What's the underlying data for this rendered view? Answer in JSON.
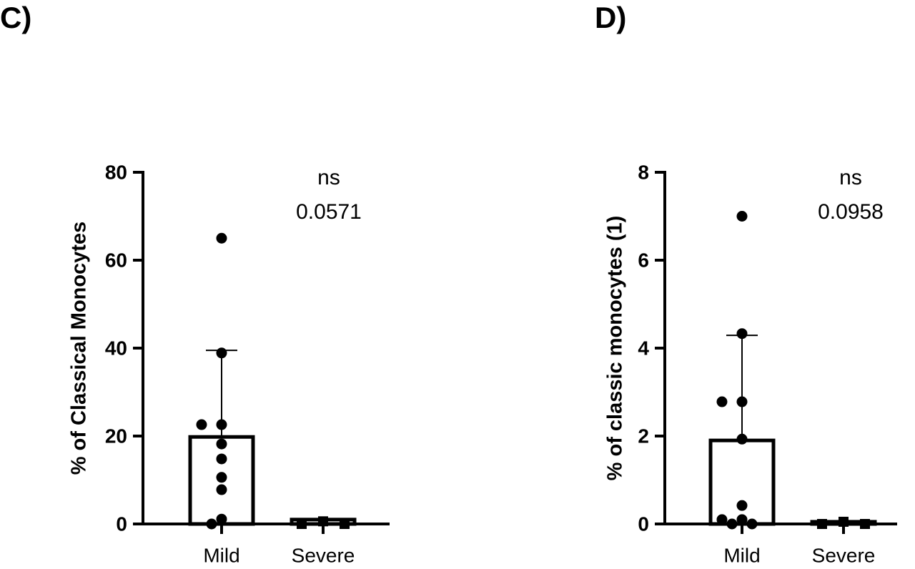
{
  "chart_data": [
    {
      "type": "bar",
      "panel_label": "C)",
      "ylabel": "% of Classical Monocytes",
      "categories": [
        "Mild",
        "Severe"
      ],
      "values": [
        19.8,
        1.0
      ],
      "errors": [
        19.7,
        0.2
      ],
      "points": [
        [
          65,
          38.9,
          22.6,
          22.6,
          18.2,
          14.8,
          10.6,
          7.8,
          1.1,
          0
        ],
        [
          0,
          0.6,
          0
        ]
      ],
      "markers": [
        "circle",
        "square"
      ],
      "color": "#000000",
      "bar_fill": "#ffffff",
      "annotations": [
        "ns",
        "0.0571"
      ],
      "ylim": [
        0,
        80
      ],
      "yticks": [
        0,
        20,
        40,
        60,
        80
      ]
    },
    {
      "type": "bar",
      "panel_label": "D)",
      "ylabel": "% of classic monocytes (1)",
      "categories": [
        "Mild",
        "Severe"
      ],
      "values": [
        1.9,
        0.05
      ],
      "errors": [
        2.39,
        0.02
      ],
      "points": [
        [
          7.0,
          4.33,
          2.78,
          2.78,
          1.93,
          0.42,
          0.1,
          0.1,
          0,
          0
        ],
        [
          0,
          0.05,
          0
        ]
      ],
      "markers": [
        "circle",
        "square"
      ],
      "color": "#000000",
      "bar_fill": "#ffffff",
      "annotations": [
        "ns",
        "0.0958"
      ],
      "ylim": [
        0,
        8
      ],
      "yticks": [
        0,
        2,
        4,
        6,
        8
      ]
    }
  ]
}
